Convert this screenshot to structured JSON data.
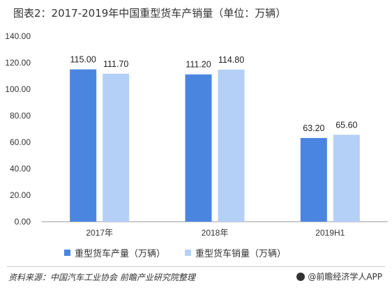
{
  "title": "图表2：2017-2019年中国重型货车产销量（单位：万辆）",
  "source": "资料来源：中国汽车工业协会 前瞻产业研究院整理",
  "brand": "@前瞻经济学人APP",
  "colors": {
    "production": "#4a86e0",
    "sales": "#b4d0f7"
  },
  "chart_data": {
    "type": "bar",
    "categories": [
      "2017年",
      "2018年",
      "2019H1"
    ],
    "series": [
      {
        "name": "重型货车产量（万辆）",
        "values": [
          115.0,
          111.2,
          63.2
        ],
        "labels": [
          "115.00",
          "111.20",
          "63.20"
        ]
      },
      {
        "name": "重型货车销量（万辆）",
        "values": [
          111.7,
          114.8,
          65.6
        ],
        "labels": [
          "111.70",
          "114.80",
          "65.60"
        ]
      }
    ],
    "yticks": [
      "0.00",
      "20.00",
      "40.00",
      "60.00",
      "80.00",
      "100.00",
      "120.00",
      "140.00"
    ],
    "ylim": [
      0,
      140
    ],
    "xlabel": "",
    "ylabel": "",
    "grid": false,
    "legend_position": "bottom"
  }
}
